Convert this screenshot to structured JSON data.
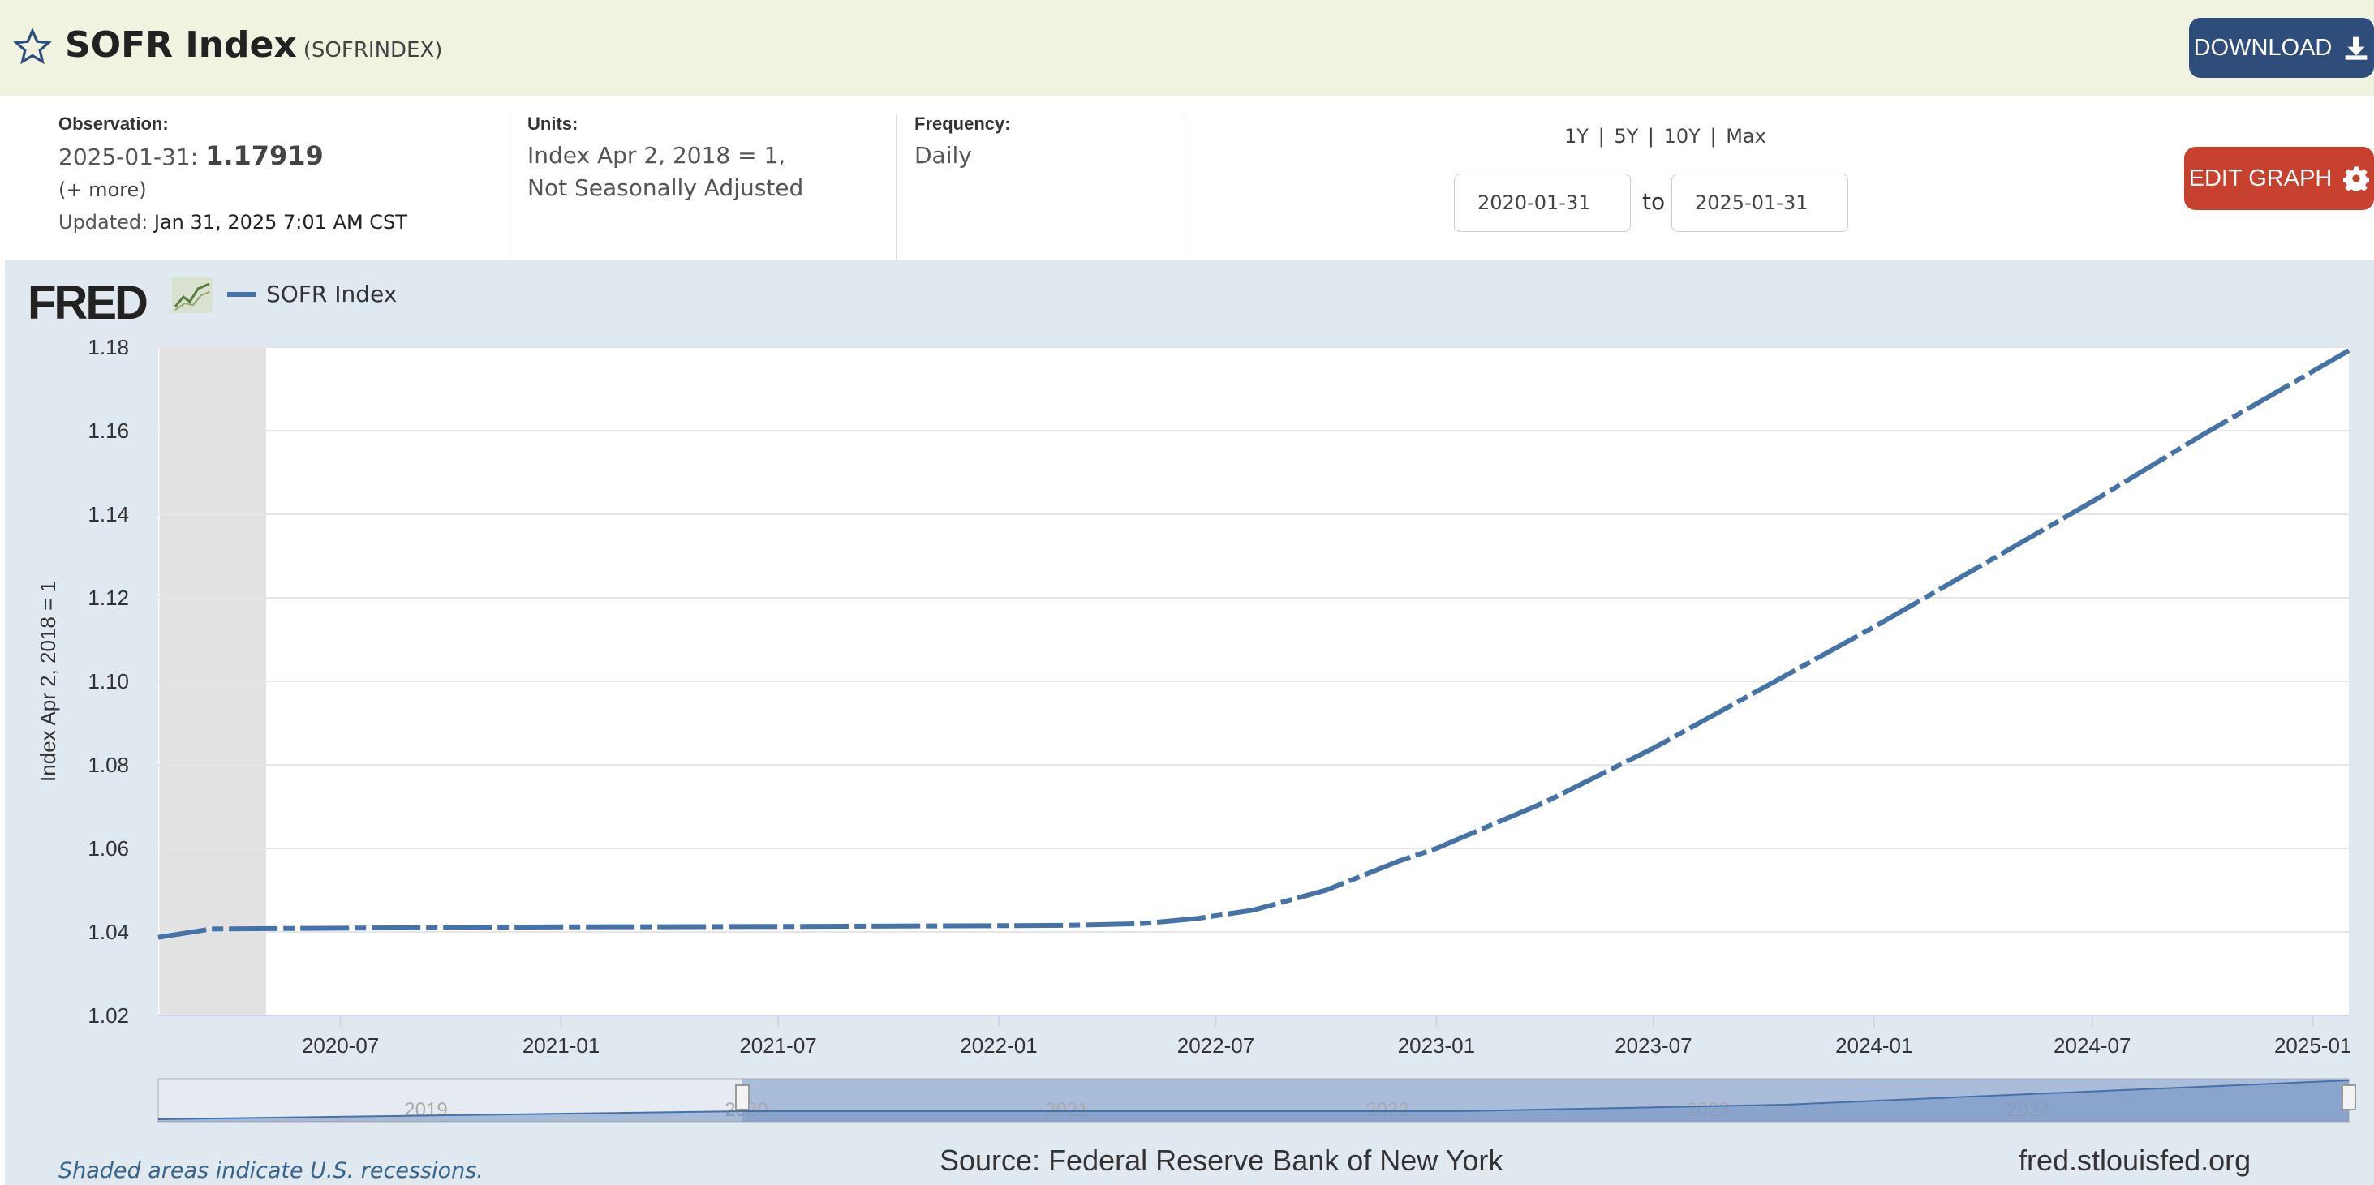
{
  "header": {
    "title": "SOFR Index",
    "series_code": "(SOFRINDEX)",
    "download_label": "DOWNLOAD",
    "edit_graph_label": "EDIT GRAPH"
  },
  "meta": {
    "observation_label": "Observation:",
    "observation_date": "2025-01-31:",
    "observation_value": "1.17919",
    "more_label": "(+ more)",
    "updated_label": "Updated:",
    "updated_value": "Jan 31, 2025 7:01 AM CST",
    "units_label": "Units:",
    "units_line1": "Index Apr 2, 2018 = 1,",
    "units_line2": "Not Seasonally Adjusted",
    "frequency_label": "Frequency:",
    "frequency_value": "Daily",
    "range_1y": "1Y",
    "range_5y": "5Y",
    "range_10y": "10Y",
    "range_max": "Max",
    "range_sep": "|",
    "start_date": "2020-01-31",
    "to_label": "to",
    "end_date": "2025-01-31"
  },
  "colors": {
    "series": "#4572a7",
    "recession": "#e2e2e2",
    "navigator": "#6f8fc2"
  },
  "icons": {
    "favorite": "star-icon",
    "download": "download-icon",
    "settings": "gear-icon",
    "chart_type": "line-chart-icon"
  },
  "footer": {
    "source": "Source: Federal Reserve Bank of New York",
    "site": "fred.stlouisfed.org",
    "recession_note": "Shaded areas indicate U.S. recessions."
  },
  "chart_data": {
    "type": "line",
    "logo": "FRED",
    "ylabel": "Index Apr 2, 2018 = 1",
    "ylim": [
      1.02,
      1.18
    ],
    "yticks": [
      1.02,
      1.04,
      1.06,
      1.08,
      1.1,
      1.12,
      1.14,
      1.16,
      1.18
    ],
    "ytick_labels": [
      "1.02",
      "1.04",
      "1.06",
      "1.08",
      "1.10",
      "1.12",
      "1.14",
      "1.16",
      "1.18"
    ],
    "xlim": [
      "2020-01-31",
      "2025-01-31"
    ],
    "xticks": [
      "2020-07",
      "2021-01",
      "2021-07",
      "2022-01",
      "2022-07",
      "2023-01",
      "2023-07",
      "2024-01",
      "2024-07",
      "2025-01"
    ],
    "grid": true,
    "legend_placement": "top-left",
    "recessions": [
      [
        "2020-02-01",
        "2020-04-30"
      ]
    ],
    "navigator_labels": [
      "2019",
      "2020",
      "2021",
      "2022",
      "2023",
      "2024"
    ],
    "series": [
      {
        "name": "SOFR Index",
        "points": [
          [
            "2020-01-31",
            1.0387
          ],
          [
            "2020-03-15",
            1.0407
          ],
          [
            "2020-05-01",
            1.0408
          ],
          [
            "2020-07-01",
            1.0409
          ],
          [
            "2021-01-01",
            1.0412
          ],
          [
            "2021-07-01",
            1.0413
          ],
          [
            "2022-01-01",
            1.0415
          ],
          [
            "2022-03-01",
            1.0416
          ],
          [
            "2022-05-01",
            1.042
          ],
          [
            "2022-06-15",
            1.0432
          ],
          [
            "2022-08-01",
            1.0452
          ],
          [
            "2022-10-01",
            1.05
          ],
          [
            "2022-12-01",
            1.057
          ],
          [
            "2023-01-01",
            1.06
          ],
          [
            "2023-04-01",
            1.071
          ],
          [
            "2023-07-01",
            1.084
          ],
          [
            "2023-10-01",
            1.0985
          ],
          [
            "2024-01-01",
            1.113
          ],
          [
            "2024-04-01",
            1.128
          ],
          [
            "2024-07-01",
            1.143
          ],
          [
            "2024-10-01",
            1.159
          ],
          [
            "2025-01-31",
            1.1792
          ]
        ]
      }
    ]
  }
}
